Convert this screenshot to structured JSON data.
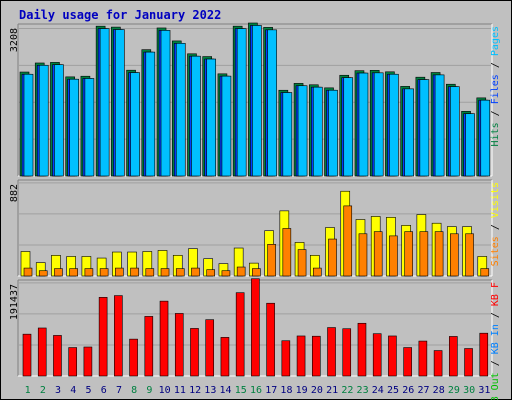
{
  "chart_data": {
    "type": "bar",
    "title": "Daily usage for January 2022",
    "categories": [
      "1",
      "2",
      "3",
      "4",
      "5",
      "6",
      "7",
      "8",
      "9",
      "10",
      "11",
      "12",
      "13",
      "14",
      "15",
      "16",
      "17",
      "18",
      "19",
      "20",
      "21",
      "22",
      "23",
      "24",
      "25",
      "26",
      "27",
      "28",
      "29",
      "30",
      "31"
    ],
    "weekend_categories": [
      "1",
      "2",
      "8",
      "9",
      "15",
      "16",
      "22",
      "23",
      "29",
      "30"
    ],
    "colors": {
      "title": "#0000c0",
      "hits": "#008040",
      "files": "#0040ff",
      "pages": "#00c0ff",
      "visits": "#ffff00",
      "sites": "#ff8000",
      "kbin": "#0080ff",
      "kbout": "#00c000",
      "kbf": "#ff0000",
      "weekday_label": "#000080",
      "weekend_label": "#008040",
      "panel_bg": "#c0c0c0"
    },
    "panels": [
      {
        "id": "top",
        "ymax": 3208,
        "ymax_label": "3208",
        "legend": [
          "Pages",
          "Files",
          "Hits"
        ],
        "legend_seps": [
          "/",
          "/"
        ],
        "series": [
          {
            "name": "Hits",
            "values": [
              2262,
              2459,
              2472,
              2157,
              2171,
              3260,
              3240,
              2302,
              2749,
              3221,
              2939,
              2659,
              2599,
              2223,
              3260,
              3329,
              3234,
              1866,
              2015,
              1985,
              1918,
              2192,
              2292,
              2299,
              2267,
              1950,
              2150,
              2252,
              1997,
              1407,
              1700
            ]
          },
          {
            "name": "Files",
            "values": [
              2214,
              2409,
              2422,
              2106,
              2122,
              3207,
              3187,
              2250,
              2696,
              3169,
              2887,
              2607,
              2545,
              2173,
              3207,
              3276,
              3180,
              1816,
              1964,
              1933,
              1866,
              2140,
              2240,
              2245,
              2214,
              1896,
              2098,
              2200,
              1945,
              1356,
              1650
            ]
          },
          {
            "name": "Pages",
            "values": [
              2214,
              2409,
              2422,
              2106,
              2122,
              3207,
              3187,
              2250,
              2696,
              3169,
              2887,
              2607,
              2545,
              2173,
              3207,
              3276,
              3180,
              1816,
              1964,
              1933,
              1866,
              2140,
              2240,
              2245,
              2214,
              1896,
              2098,
              2200,
              1945,
              1356,
              1650
            ]
          }
        ]
      },
      {
        "id": "middle",
        "ymax": 882,
        "ymax_label": "882",
        "legend": [
          "Visits",
          "Sites"
        ],
        "legend_seps": [
          "/"
        ],
        "series": [
          {
            "name": "Visits",
            "values": [
              232,
              127,
              196,
              185,
              185,
              170,
              227,
              227,
              232,
              242,
              196,
              259,
              164,
              117,
              265,
              122,
              429,
              617,
              318,
              196,
              459,
              803,
              535,
              564,
              556,
              480,
              582,
              500,
              468,
              468,
              185
            ]
          },
          {
            "name": "Sites",
            "values": [
              75,
              50,
              70,
              70,
              70,
              70,
              75,
              75,
              70,
              70,
              70,
              75,
              60,
              50,
              85,
              70,
              300,
              450,
              250,
              75,
              350,
              664,
              400,
              420,
              380,
              420,
              420,
              420,
              400,
              400,
              70
            ]
          }
        ]
      },
      {
        "id": "bottom",
        "ymax": 191437,
        "ymax_label": "191437",
        "legend": [
          "KB F",
          "KB In",
          "KB Out"
        ],
        "legend_seps": [
          "/",
          "/"
        ],
        "series": [
          {
            "name": "KB F",
            "values": [
              86000,
              98700,
              83400,
              58500,
              59600,
              161700,
              165300,
              75800,
              122500,
              153900,
              128600,
              97800,
              115800,
              79400,
              171300,
              200000,
              149600,
              72500,
              82300,
              81800,
              99600,
              97200,
              108400,
              87000,
              82300,
              58500,
              71800,
              52300,
              81300,
              56500,
              88000
            ]
          }
        ]
      }
    ]
  }
}
